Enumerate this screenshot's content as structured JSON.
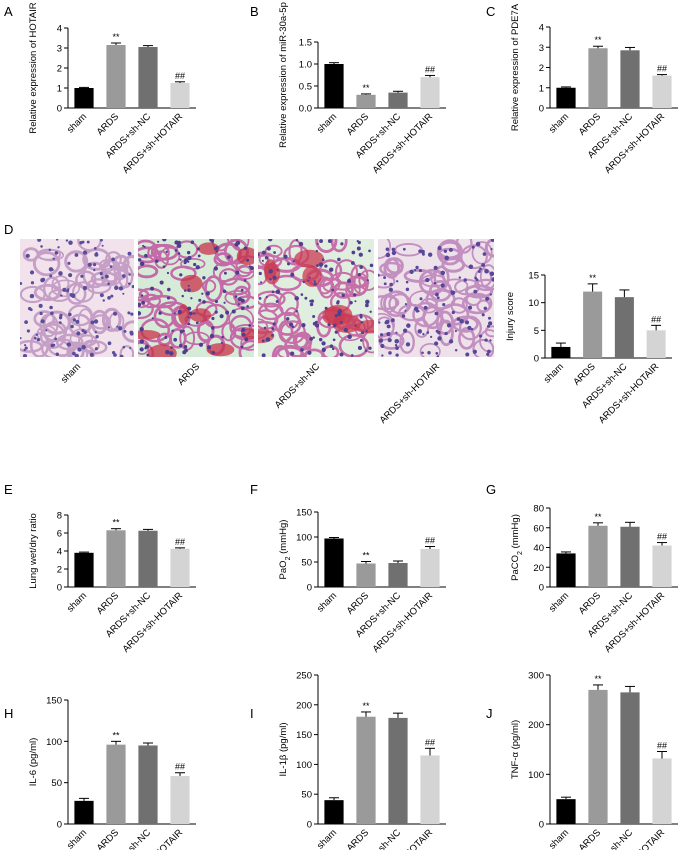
{
  "colors": {
    "sham": "#000000",
    "ards": "#9a9a9a",
    "ards_nc": "#707070",
    "hotair": "#d4d4d4"
  },
  "histology": {
    "panel_label": "D",
    "images": [
      {
        "label": "sham",
        "bg": "#f1e2ec",
        "cell": "#5a4d9c",
        "wall": "#c59fc6",
        "blood": ""
      },
      {
        "label": "ARDS",
        "bg": "#d5ebd7",
        "cell": "#4e3d8f",
        "wall": "#c46aa8",
        "blood": "#c83248"
      },
      {
        "label": "ARDS+sh-NC",
        "bg": "#e0eee0",
        "cell": "#513f90",
        "wall": "#c76fa9",
        "blood": "#cb3a52"
      },
      {
        "label": "ARDS+sh-HOTAIR",
        "bg": "#eee2ea",
        "cell": "#56479a",
        "wall": "#c28fc0",
        "blood": ""
      }
    ]
  },
  "chart_data": [
    {
      "panel_label": "A",
      "type": "bar",
      "categories": [
        "sham",
        "ARDS",
        "ARDS+sh-NC",
        "ARDS+sh-HOTAIR"
      ],
      "values": [
        1.0,
        3.15,
        3.05,
        1.25
      ],
      "errors": [
        0.03,
        0.1,
        0.07,
        0.06
      ],
      "annotations": [
        "",
        "**",
        "",
        "##"
      ],
      "ylabel": "Relative expression of HOTAIR",
      "ylim": [
        0,
        4
      ],
      "yticks": [
        "0",
        "1",
        "2",
        "3",
        "4"
      ]
    },
    {
      "panel_label": "B",
      "type": "bar",
      "categories": [
        "sham",
        "ARDS",
        "ARDS+sh-NC",
        "ARDS+sh-HOTAIR"
      ],
      "values": [
        1.0,
        0.3,
        0.35,
        0.7
      ],
      "errors": [
        0.03,
        0.02,
        0.03,
        0.04
      ],
      "annotations": [
        "",
        "**",
        "",
        "##"
      ],
      "ylabel": "Relative expression of miR-30a-5p",
      "ylim": [
        0,
        1.5
      ],
      "yticks": [
        "0.0",
        "0.5",
        "1.0",
        "1.5"
      ]
    },
    {
      "panel_label": "C",
      "type": "bar",
      "categories": [
        "sham",
        "ARDS",
        "ARDS+sh-NC",
        "ARDS+sh-HOTAIR"
      ],
      "values": [
        1.0,
        2.95,
        2.85,
        1.6
      ],
      "errors": [
        0.04,
        0.1,
        0.14,
        0.05
      ],
      "annotations": [
        "",
        "**",
        "",
        "##"
      ],
      "ylabel": "Relative expression of PDE7A",
      "ylim": [
        0,
        4
      ],
      "yticks": [
        "0",
        "1",
        "2",
        "3",
        "4"
      ]
    },
    {
      "panel_label": "",
      "type": "bar",
      "categories": [
        "sham",
        "ARDS",
        "ARDS+sh-NC",
        "ARDS+sh-HOTAIR"
      ],
      "values": [
        2.0,
        12.0,
        11.0,
        5.0
      ],
      "errors": [
        0.7,
        1.4,
        1.3,
        0.9
      ],
      "annotations": [
        "",
        "**",
        "",
        "##"
      ],
      "ylabel": "Injury score",
      "ylim": [
        0,
        15
      ],
      "yticks": [
        "0",
        "5",
        "10",
        "15"
      ]
    },
    {
      "panel_label": "E",
      "type": "bar",
      "categories": [
        "sham",
        "ARDS",
        "ARDS+sh-NC",
        "ARDS+sh-HOTAIR"
      ],
      "values": [
        3.8,
        6.3,
        6.25,
        4.25
      ],
      "errors": [
        0.08,
        0.18,
        0.15,
        0.1
      ],
      "annotations": [
        "",
        "**",
        "",
        "##"
      ],
      "ylabel": "Lung wet/dry ratio",
      "ylim": [
        0,
        8
      ],
      "yticks": [
        "0",
        "2",
        "4",
        "6",
        "8"
      ]
    },
    {
      "panel_label": "F",
      "type": "bar",
      "categories": [
        "sham",
        "ARDS",
        "ARDS+sh-NC",
        "ARDS+sh-HOTAIR"
      ],
      "values": [
        97,
        47,
        48,
        76
      ],
      "errors": [
        2,
        4,
        4,
        5
      ],
      "annotations": [
        "",
        "**",
        "",
        "##"
      ],
      "ylabel": "PaO",
      "ylabel_sub": "2",
      "ylabel_unit": " (mmHg)",
      "ylim": [
        0,
        150
      ],
      "yticks": [
        "0",
        "50",
        "100",
        "150"
      ]
    },
    {
      "panel_label": "G",
      "type": "bar",
      "categories": [
        "sham",
        "ARDS",
        "ARDS+sh-NC",
        "ARDS+sh-HOTAIR"
      ],
      "values": [
        34,
        62,
        61,
        42
      ],
      "errors": [
        1.5,
        3,
        4.5,
        3
      ],
      "annotations": [
        "",
        "**",
        "",
        "##"
      ],
      "ylabel": "PaCO",
      "ylabel_sub": "2",
      "ylabel_unit": " (mmHg)",
      "ylim": [
        0,
        80
      ],
      "yticks": [
        "0",
        "20",
        "40",
        "60",
        "80"
      ]
    },
    {
      "panel_label": "H",
      "type": "bar",
      "categories": [
        "sham",
        "ARDS",
        "ARDS+sh-NC",
        "ARDS+sh-HOTAIR"
      ],
      "values": [
        28,
        96,
        95,
        58
      ],
      "errors": [
        3,
        4,
        3,
        4
      ],
      "annotations": [
        "",
        "**",
        "",
        "##"
      ],
      "ylabel": "IL-6 (pg/ml)",
      "ylim": [
        0,
        150
      ],
      "yticks": [
        "0",
        "50",
        "100",
        "150"
      ]
    },
    {
      "panel_label": "I",
      "type": "bar",
      "categories": [
        "sham",
        "ARDS",
        "ARDS+sh-NC",
        "ARDS+sh-HOTAIR"
      ],
      "values": [
        40,
        180,
        178,
        115
      ],
      "errors": [
        4,
        8,
        8,
        12
      ],
      "annotations": [
        "",
        "**",
        "",
        "##"
      ],
      "ylabel": "IL-1β (pg/ml)",
      "ylim": [
        0,
        250
      ],
      "yticks": [
        "0",
        "50",
        "100",
        "150",
        "200",
        "250"
      ]
    },
    {
      "panel_label": "J",
      "type": "bar",
      "categories": [
        "sham",
        "ARDS",
        "ARDS+sh-NC",
        "ARDS+sh-HOTAIR"
      ],
      "values": [
        50,
        270,
        265,
        132
      ],
      "errors": [
        4,
        10,
        12,
        14
      ],
      "annotations": [
        "",
        "**",
        "",
        "##"
      ],
      "ylabel": "TNF-α (pg/ml)",
      "ylim": [
        0,
        300
      ],
      "yticks": [
        "0",
        "100",
        "200",
        "300"
      ]
    }
  ]
}
